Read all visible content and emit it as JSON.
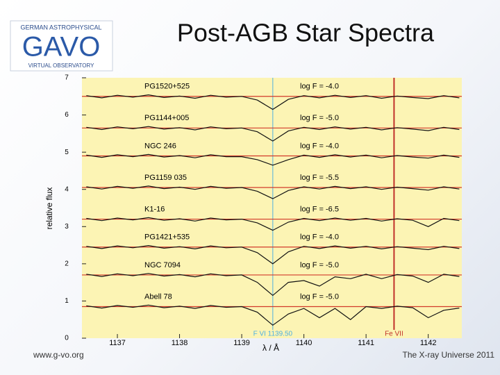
{
  "slide": {
    "title": "Post-AGB Star Spectra",
    "footer_left": "www.g-vo.org",
    "footer_right": "The X-ray Universe 2011",
    "logo": {
      "top": "GERMAN ASTROPHYSICAL",
      "main": "GAVO",
      "bottom": "VIRTUAL OBSERVATORY"
    }
  },
  "chart_data": {
    "type": "line",
    "xlabel": "λ / Å",
    "ylabel": "relative flux",
    "xlim": [
      1136.43,
      1142.54
    ],
    "ylim": [
      0,
      7
    ],
    "xticks": [
      1137,
      1138,
      1139,
      1140,
      1141,
      1142
    ],
    "yticks": [
      0,
      1,
      2,
      3,
      4,
      5,
      6,
      7
    ],
    "background": "#fcf4b4",
    "model_color": "#d23a2a",
    "x": [
      1136.5,
      1136.75,
      1137,
      1137.25,
      1137.5,
      1137.75,
      1138,
      1138.25,
      1138.5,
      1138.75,
      1139,
      1139.25,
      1139.5,
      1139.75,
      1140,
      1140.25,
      1140.5,
      1140.75,
      1141,
      1141.25,
      1141.5,
      1141.75,
      1142,
      1142.25,
      1142.5
    ],
    "series": [
      {
        "name": "PG1520+525",
        "log_f_label": "log F = -4.0",
        "color": "#111111",
        "continuum": 6.5,
        "values": [
          6.52,
          6.46,
          6.53,
          6.48,
          6.54,
          6.47,
          6.51,
          6.45,
          6.53,
          6.48,
          6.5,
          6.4,
          6.15,
          6.42,
          6.52,
          6.46,
          6.53,
          6.47,
          6.52,
          6.45,
          6.51,
          6.47,
          6.44,
          6.52,
          6.46
        ]
      },
      {
        "name": "PG1144+005",
        "log_f_label": "log F = -5.0",
        "color": "#111111",
        "continuum": 5.65,
        "values": [
          5.67,
          5.61,
          5.68,
          5.63,
          5.69,
          5.62,
          5.66,
          5.6,
          5.68,
          5.63,
          5.65,
          5.55,
          5.3,
          5.57,
          5.67,
          5.61,
          5.68,
          5.62,
          5.67,
          5.6,
          5.66,
          5.62,
          5.58,
          5.67,
          5.61
        ]
      },
      {
        "name": "NGC 246",
        "log_f_label": "log F = -4.0",
        "color": "#111111",
        "continuum": 4.9,
        "values": [
          4.92,
          4.86,
          4.93,
          4.88,
          4.94,
          4.87,
          4.91,
          4.85,
          4.93,
          4.88,
          4.88,
          4.8,
          4.65,
          4.8,
          4.92,
          4.86,
          4.93,
          4.87,
          4.92,
          4.85,
          4.91,
          4.87,
          4.84,
          4.92,
          4.86
        ]
      },
      {
        "name": "PG1159 035",
        "log_f_label": "log F = -5.5",
        "color": "#111111",
        "continuum": 4.05,
        "values": [
          4.07,
          4.01,
          4.08,
          4.03,
          4.09,
          4.02,
          4.06,
          4.0,
          4.08,
          4.03,
          4.05,
          3.95,
          3.75,
          3.97,
          4.07,
          4.01,
          4.08,
          4.02,
          4.07,
          4.0,
          4.06,
          4.02,
          3.98,
          4.07,
          4.01
        ]
      },
      {
        "name": "K1-16",
        "log_f_label": "log F = -6.5",
        "color": "#111111",
        "continuum": 3.2,
        "values": [
          3.22,
          3.16,
          3.23,
          3.18,
          3.24,
          3.17,
          3.21,
          3.15,
          3.23,
          3.18,
          3.2,
          3.1,
          2.9,
          3.12,
          3.22,
          3.16,
          3.23,
          3.17,
          3.22,
          3.15,
          3.21,
          3.17,
          3.0,
          3.22,
          3.16
        ]
      },
      {
        "name": "PG1421+535",
        "log_f_label": "log F = -4.0",
        "color": "#111111",
        "continuum": 2.45,
        "values": [
          2.47,
          2.41,
          2.48,
          2.43,
          2.49,
          2.42,
          2.46,
          2.4,
          2.48,
          2.43,
          2.45,
          2.3,
          2.0,
          2.32,
          2.47,
          2.41,
          2.48,
          2.42,
          2.47,
          2.4,
          2.46,
          2.42,
          2.38,
          2.47,
          2.41
        ]
      },
      {
        "name": "NGC 7094",
        "log_f_label": "log F = -5.0",
        "color": "#111111",
        "continuum": 1.7,
        "values": [
          1.72,
          1.66,
          1.73,
          1.68,
          1.74,
          1.67,
          1.71,
          1.65,
          1.73,
          1.68,
          1.7,
          1.5,
          1.15,
          1.5,
          1.55,
          1.4,
          1.65,
          1.6,
          1.72,
          1.6,
          1.71,
          1.67,
          1.5,
          1.72,
          1.66
        ]
      },
      {
        "name": "Abell 78",
        "log_f_label": "log F = -5.0",
        "color": "#111111",
        "continuum": 0.85,
        "values": [
          0.87,
          0.81,
          0.88,
          0.83,
          0.89,
          0.82,
          0.86,
          0.8,
          0.88,
          0.83,
          0.85,
          0.7,
          0.35,
          0.65,
          0.8,
          0.55,
          0.8,
          0.5,
          0.85,
          0.8,
          0.86,
          0.82,
          0.55,
          0.75,
          0.81
        ]
      }
    ],
    "lines": [
      {
        "label": "F VI 1139.50",
        "x": 1139.5,
        "color": "#4fb0e0"
      },
      {
        "label": "Fe VII",
        "x": 1141.45,
        "color": "#c0302a"
      }
    ]
  }
}
